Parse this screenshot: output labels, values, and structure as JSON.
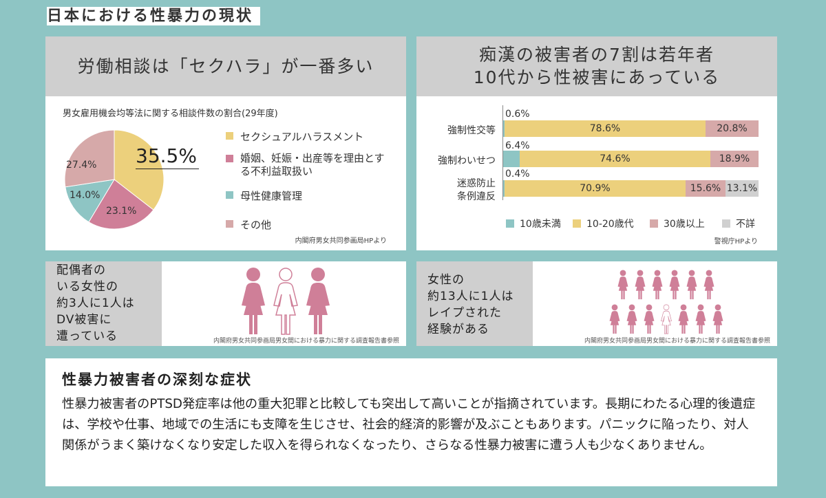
{
  "page_title": "日本における性暴力の現状",
  "colors": {
    "background": "#8ec5c4",
    "header_gray": "#cfcfcf",
    "yellow": "#ecd07c",
    "pink": "#cf7f98",
    "teal": "#8ec5c4",
    "dusty_pink": "#d6a9a9",
    "gray": "#d0d0d0"
  },
  "panel1": {
    "header": "労働相談は「セクハラ」が一番多い",
    "subtitle": "男女雇用機会均等法に関する相談件数の割合(29年度)",
    "highlight": "35.5%",
    "slice_labels": [
      "27.4%",
      "14.0%",
      "23.1%"
    ],
    "legend": [
      {
        "label": "セクシュアルハラスメント",
        "color": "#ecd07c"
      },
      {
        "label": "婚姻、妊娠・出産等を理由とする不利益取扱い",
        "color": "#cf7f98"
      },
      {
        "label": "母性健康管理",
        "color": "#8ec5c4"
      },
      {
        "label": "その他",
        "color": "#d6a9a9"
      }
    ],
    "source": "内閣府男女共同参画局HPより"
  },
  "panel2": {
    "header_line1": "痴漢の被害者の7割は若年者",
    "header_line2": "10代から性被害にあっている",
    "rows": [
      {
        "label": "強制性交等",
        "under10": "0.6%",
        "teen": "78.6%",
        "over30": "20.8%",
        "unknown": ""
      },
      {
        "label": "強制わいせつ",
        "under10": "6.4%",
        "teen": "74.6%",
        "over30": "18.9%",
        "unknown": ""
      },
      {
        "label_line1": "迷惑防止",
        "label_line2": "条例違反",
        "under10": "0.4%",
        "teen": "70.9%",
        "over30": "15.6%",
        "unknown": "13.1%"
      }
    ],
    "legend": [
      {
        "label": "10歳未満",
        "color": "#8ec5c4"
      },
      {
        "label": "10-20歳代",
        "color": "#ecd07c"
      },
      {
        "label": "30歳以上",
        "color": "#d6a9a9"
      },
      {
        "label": "不詳",
        "color": "#d0d0d0"
      }
    ],
    "source": "警視庁HPより"
  },
  "panel3": {
    "lines": [
      "配偶者の",
      "いる女性の",
      "約3人に1人は",
      "DV被害に",
      "遭っている"
    ],
    "source": "内閣府男女共同参画局男女間における暴力に関する調査報告書参照"
  },
  "panel4": {
    "lines": [
      "女性の",
      "約13人に1人は",
      "レイプされた",
      "経験がある"
    ],
    "source": "内閣府男女共同参画局男女間における暴力に関する調査報告書参照"
  },
  "panel5": {
    "title": "性暴力被害者の深刻な症状",
    "body": "性暴力被害者のPTSD発症率は他の重大犯罪と比較しても突出して高いことが指摘されています。長期にわたる心理的後遺症は、学校や仕事、地域での生活にも支障を生じさせ、社会的経済的影響が及ぶこともあります。パニックに陥ったり、対人関係がうまく築けなくなり安定した収入を得られなくなったり、さらなる性暴力被害に遭う人も少なくありません。"
  },
  "chart_data": [
    {
      "type": "pie",
      "title": "男女雇用機会均等法に関する相談件数の割合(29年度)",
      "categories": [
        "セクシュアルハラスメント",
        "婚姻、妊娠・出産等を理由とする不利益取扱い",
        "母性健康管理",
        "その他"
      ],
      "values": [
        35.5,
        23.1,
        14.0,
        27.4
      ]
    },
    {
      "type": "bar",
      "orientation": "horizontal",
      "stacked": true,
      "categories": [
        "強制性交等",
        "強制わいせつ",
        "迷惑防止条例違反"
      ],
      "series": [
        {
          "name": "10歳未満",
          "values": [
            0.6,
            6.4,
            0.4
          ]
        },
        {
          "name": "10-20歳代",
          "values": [
            78.6,
            74.6,
            70.9
          ]
        },
        {
          "name": "30歳以上",
          "values": [
            20.8,
            18.9,
            15.6
          ]
        },
        {
          "name": "不詳",
          "values": [
            0,
            0,
            13.1
          ]
        }
      ],
      "xlim": [
        0,
        100
      ],
      "legend": "bottom"
    }
  ]
}
